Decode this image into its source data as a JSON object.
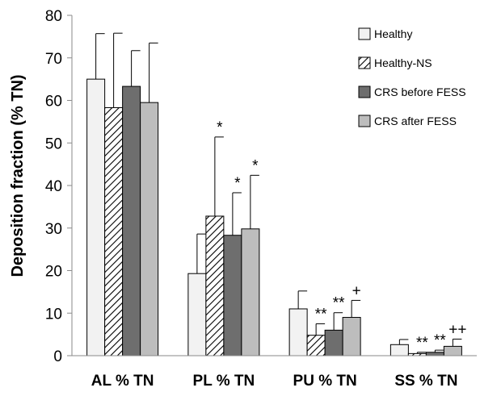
{
  "chart_data": {
    "type": "bar",
    "ylabel": "Deposition fraction (% TN)",
    "xlabel": "",
    "ylim": [
      0,
      80
    ],
    "yticks": [
      0,
      10,
      20,
      30,
      40,
      50,
      60,
      70,
      80
    ],
    "grid": false,
    "legend_position": "top-right",
    "categories": [
      "AL % TN",
      "PL % TN",
      "PU % TN",
      "SS % TN"
    ],
    "series": [
      {
        "name": "Healthy",
        "pattern": "solid",
        "color": "#f2f2f2",
        "values": [
          65.0,
          19.3,
          11.0,
          2.6
        ],
        "errors": [
          10.7,
          9.3,
          4.2,
          1.2
        ],
        "annotations": [
          "",
          "",
          "",
          ""
        ]
      },
      {
        "name": "Healthy-NS",
        "pattern": "hatch",
        "color": "#ffffff",
        "values": [
          58.3,
          32.8,
          4.8,
          0.5
        ],
        "errors": [
          17.5,
          18.6,
          2.7,
          0.3
        ],
        "annotations": [
          "",
          "*",
          "**",
          "**"
        ]
      },
      {
        "name": "CRS before FESS",
        "pattern": "solid",
        "color": "#6e6e6e",
        "values": [
          63.3,
          28.3,
          6.0,
          0.8
        ],
        "errors": [
          8.4,
          10.0,
          4.1,
          0.5
        ],
        "annotations": [
          "",
          "*",
          "**",
          "**"
        ]
      },
      {
        "name": "CRS after FESS",
        "pattern": "solid",
        "color": "#bdbdbd",
        "values": [
          59.5,
          29.8,
          9.0,
          2.2
        ],
        "errors": [
          14.0,
          12.6,
          4.0,
          1.7
        ],
        "annotations": [
          "",
          "*",
          "+",
          "++"
        ]
      }
    ]
  }
}
